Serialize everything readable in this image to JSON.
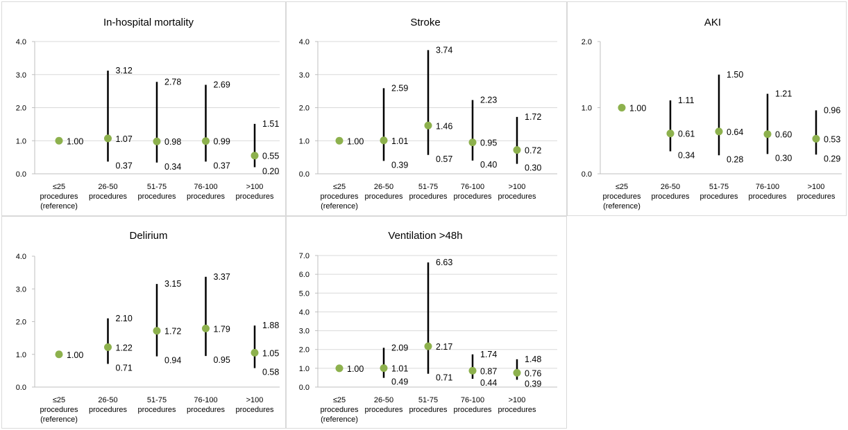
{
  "colors": {
    "point": "#8db14d",
    "bar": "#000000",
    "grid": "#d9d9d9",
    "axis": "#bfbfbf",
    "border": "#d9d9d9"
  },
  "chart_data": [
    {
      "type": "scatter",
      "title": "In-hospital mortality",
      "categories": [
        [
          "≤25",
          "procedures",
          "(reference)"
        ],
        [
          "26-50",
          "procedures"
        ],
        [
          "51-75",
          "procedures"
        ],
        [
          "76-100",
          "procedures"
        ],
        [
          ">100",
          "procedures"
        ]
      ],
      "ylim": [
        0,
        4
      ],
      "yticks": [
        "0.0",
        "1.0",
        "2.0",
        "3.0",
        "4.0"
      ],
      "grid": true,
      "series": [
        {
          "values": [
            1.0,
            1.07,
            0.98,
            0.99,
            0.55
          ],
          "labels": [
            "1.00",
            "1.07",
            "0.98",
            "0.99",
            "0.55"
          ]
        },
        {
          "values": [
            null,
            3.12,
            2.78,
            2.69,
            1.51
          ],
          "labels": [
            "",
            "3.12",
            "2.78",
            "2.69",
            "1.51"
          ]
        },
        {
          "values": [
            null,
            0.37,
            0.34,
            0.37,
            0.2
          ],
          "labels": [
            "",
            "0.37",
            "0.34",
            "0.37",
            "0.20"
          ]
        }
      ]
    },
    {
      "type": "scatter",
      "title": "Stroke",
      "categories": [
        [
          "≤25",
          "procedures",
          "(reference)"
        ],
        [
          "26-50",
          "procedures"
        ],
        [
          "51-75",
          "procedures"
        ],
        [
          "76-100",
          "procedures"
        ],
        [
          ">100",
          "procedures"
        ]
      ],
      "ylim": [
        0,
        4
      ],
      "yticks": [
        "0.0",
        "1.0",
        "2.0",
        "3.0",
        "4.0"
      ],
      "grid": true,
      "series": [
        {
          "values": [
            1.0,
            1.01,
            1.46,
            0.95,
            0.72
          ],
          "labels": [
            "1.00",
            "1.01",
            "1.46",
            "0.95",
            "0.72"
          ]
        },
        {
          "values": [
            null,
            2.59,
            3.74,
            2.23,
            1.72
          ],
          "labels": [
            "",
            "2.59",
            "3.74",
            "2.23",
            "1.72"
          ]
        },
        {
          "values": [
            null,
            0.39,
            0.57,
            0.4,
            0.3
          ],
          "labels": [
            "",
            "0.39",
            "0.57",
            "0.40",
            "0.30"
          ]
        }
      ]
    },
    {
      "type": "scatter",
      "title": "AKI",
      "categories": [
        [
          "≤25",
          "procedures",
          "(reference)"
        ],
        [
          "26-50",
          "procedures"
        ],
        [
          "51-75",
          "procedures"
        ],
        [
          "76-100",
          "procedures"
        ],
        [
          ">100",
          "procedures"
        ]
      ],
      "ylim": [
        0,
        2
      ],
      "yticks": [
        "0.0",
        "1.0",
        "2.0"
      ],
      "grid": false,
      "series": [
        {
          "values": [
            1.0,
            0.61,
            0.64,
            0.6,
            0.53
          ],
          "labels": [
            "1.00",
            "0.61",
            "0.64",
            "0.60",
            "0.53"
          ]
        },
        {
          "values": [
            null,
            1.11,
            1.5,
            1.21,
            0.96
          ],
          "labels": [
            "",
            "1.11",
            "1.50",
            "1.21",
            "0.96"
          ]
        },
        {
          "values": [
            null,
            0.34,
            0.28,
            0.3,
            0.29
          ],
          "labels": [
            "",
            "0.34",
            "0.28",
            "0.30",
            "0.29"
          ]
        }
      ]
    },
    {
      "type": "scatter",
      "title": "Delirium",
      "categories": [
        [
          "≤25",
          "procedures",
          "(reference)"
        ],
        [
          "26-50",
          "procedures"
        ],
        [
          "51-75",
          "procedures"
        ],
        [
          "76-100",
          "procedures"
        ],
        [
          ">100",
          "procedures"
        ]
      ],
      "ylim": [
        0,
        4
      ],
      "yticks": [
        "0.0",
        "1.0",
        "2.0",
        "3.0",
        "4.0"
      ],
      "grid": false,
      "series": [
        {
          "values": [
            1.0,
            1.22,
            1.72,
            1.79,
            1.05
          ],
          "labels": [
            "1.00",
            "1.22",
            "1.72",
            "1.79",
            "1.05"
          ]
        },
        {
          "values": [
            null,
            2.1,
            3.15,
            3.37,
            1.88
          ],
          "labels": [
            "",
            "2.10",
            "3.15",
            "3.37",
            "1.88"
          ]
        },
        {
          "values": [
            null,
            0.71,
            0.94,
            0.95,
            0.58
          ],
          "labels": [
            "",
            "0.71",
            "0.94",
            "0.95",
            "0.58"
          ]
        }
      ]
    },
    {
      "type": "scatter",
      "title": "Ventilation >48h",
      "categories": [
        [
          "≤25",
          "procedures",
          "(reference)"
        ],
        [
          "26-50",
          "procedures"
        ],
        [
          "51-75",
          "procedures"
        ],
        [
          "76-100",
          "procedures"
        ],
        [
          ">100",
          "procedures"
        ]
      ],
      "ylim": [
        0,
        7
      ],
      "yticks": [
        "0.0",
        "1.0",
        "2.0",
        "3.0",
        "4.0",
        "5.0",
        "6.0",
        "7.0"
      ],
      "grid": true,
      "series": [
        {
          "values": [
            1.0,
            1.01,
            2.17,
            0.87,
            0.76
          ],
          "labels": [
            "1.00",
            "1.01",
            "2.17",
            "0.87",
            "0.76"
          ]
        },
        {
          "values": [
            null,
            2.09,
            6.63,
            1.74,
            1.48
          ],
          "labels": [
            "",
            "2.09",
            "6.63",
            "1.74",
            "1.48"
          ]
        },
        {
          "values": [
            null,
            0.49,
            0.71,
            0.44,
            0.39
          ],
          "labels": [
            "",
            "0.49",
            "0.71",
            "0.44",
            "0.39"
          ]
        }
      ]
    }
  ]
}
